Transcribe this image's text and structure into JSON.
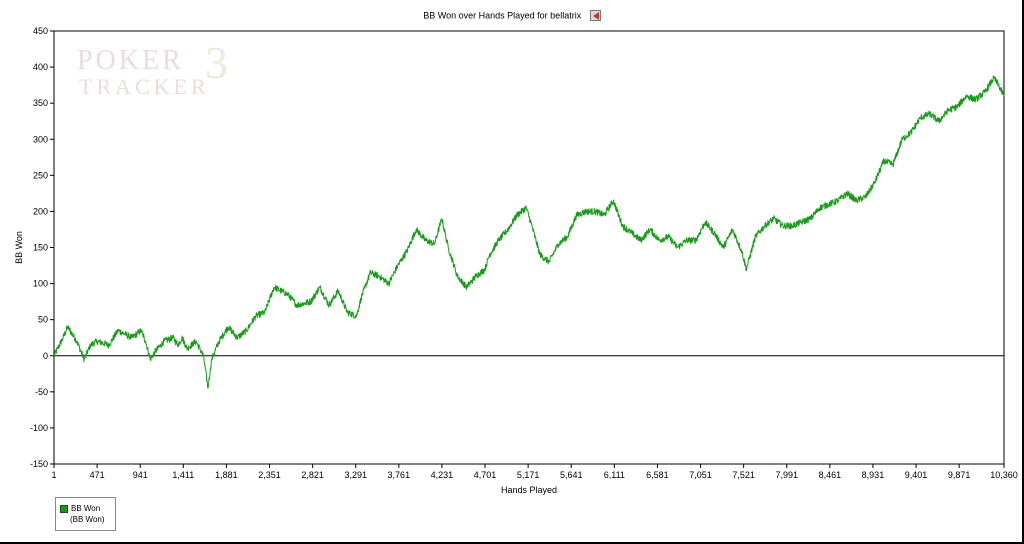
{
  "chart_data": {
    "type": "line",
    "title": "BB Won over Hands Played for bellatrix",
    "xlabel": "Hands Played",
    "ylabel": "BB Won",
    "xlim": [
      1,
      10360
    ],
    "ylim": [
      -150,
      450
    ],
    "x_ticks": [
      "1",
      "471",
      "941",
      "1,411",
      "1,881",
      "2,351",
      "2,821",
      "3,291",
      "3,761",
      "4,231",
      "4,701",
      "5,171",
      "5,641",
      "6,111",
      "6,581",
      "7,051",
      "7,521",
      "7,991",
      "8,461",
      "8,931",
      "9,401",
      "9,871",
      "10,360"
    ],
    "x_tick_values": [
      1,
      471,
      941,
      1411,
      1881,
      2351,
      2821,
      3291,
      3761,
      4231,
      4701,
      5171,
      5641,
      6111,
      6581,
      7051,
      7521,
      7991,
      8461,
      8931,
      9401,
      9871,
      10360
    ],
    "y_ticks": [
      "450",
      "400",
      "350",
      "300",
      "250",
      "200",
      "150",
      "100",
      "50",
      "0",
      "-50",
      "-100",
      "-150"
    ],
    "y_tick_values": [
      450,
      400,
      350,
      300,
      250,
      200,
      150,
      100,
      50,
      0,
      -50,
      -100,
      -150
    ],
    "grid": false,
    "zero_line": true,
    "legend_position": "bottom-left",
    "series": [
      {
        "name": "BB Won",
        "legend_sub": "(BB Won)",
        "color": "#1a9a1a",
        "x": [
          1,
          100,
          150,
          250,
          330,
          400,
          470,
          600,
          700,
          850,
          950,
          1000,
          1050,
          1100,
          1200,
          1300,
          1350,
          1400,
          1450,
          1550,
          1630,
          1680,
          1720,
          1800,
          1900,
          2000,
          2100,
          2200,
          2300,
          2400,
          2550,
          2650,
          2800,
          2900,
          3000,
          3100,
          3200,
          3300,
          3350,
          3450,
          3550,
          3650,
          3750,
          3850,
          3950,
          4050,
          4150,
          4230,
          4300,
          4400,
          4500,
          4600,
          4700,
          4750,
          4850,
          4950,
          5050,
          5150,
          5200,
          5300,
          5400,
          5500,
          5600,
          5700,
          5800,
          5900,
          6000,
          6100,
          6200,
          6300,
          6400,
          6500,
          6600,
          6700,
          6800,
          6900,
          7000,
          7100,
          7200,
          7300,
          7400,
          7500,
          7550,
          7650,
          7750,
          7850,
          7950,
          8050,
          8150,
          8250,
          8350,
          8450,
          8550,
          8650,
          8750,
          8850,
          8950,
          9050,
          9150,
          9250,
          9350,
          9450,
          9550,
          9650,
          9750,
          9850,
          9950,
          10050,
          10150,
          10250,
          10300,
          10360
        ],
        "values": [
          0,
          25,
          40,
          20,
          -5,
          15,
          20,
          15,
          35,
          25,
          35,
          20,
          -5,
          5,
          20,
          25,
          15,
          25,
          10,
          20,
          0,
          -45,
          -5,
          20,
          40,
          25,
          35,
          55,
          60,
          95,
          85,
          70,
          75,
          95,
          70,
          90,
          60,
          55,
          80,
          115,
          110,
          100,
          125,
          145,
          175,
          160,
          155,
          190,
          150,
          110,
          95,
          110,
          120,
          140,
          160,
          175,
          195,
          205,
          185,
          140,
          130,
          155,
          165,
          195,
          200,
          200,
          195,
          215,
          180,
          170,
          160,
          175,
          160,
          165,
          150,
          160,
          160,
          185,
          170,
          150,
          175,
          145,
          120,
          165,
          180,
          190,
          180,
          180,
          185,
          190,
          205,
          210,
          215,
          225,
          215,
          220,
          240,
          270,
          265,
          300,
          310,
          330,
          335,
          325,
          340,
          345,
          360,
          355,
          365,
          385,
          375,
          360
        ]
      }
    ]
  },
  "legend": {
    "label": "BB Won",
    "sub": "(BB Won)"
  },
  "watermark": {
    "line1": "POKER",
    "line2": "TRACKER",
    "mark": "3"
  }
}
